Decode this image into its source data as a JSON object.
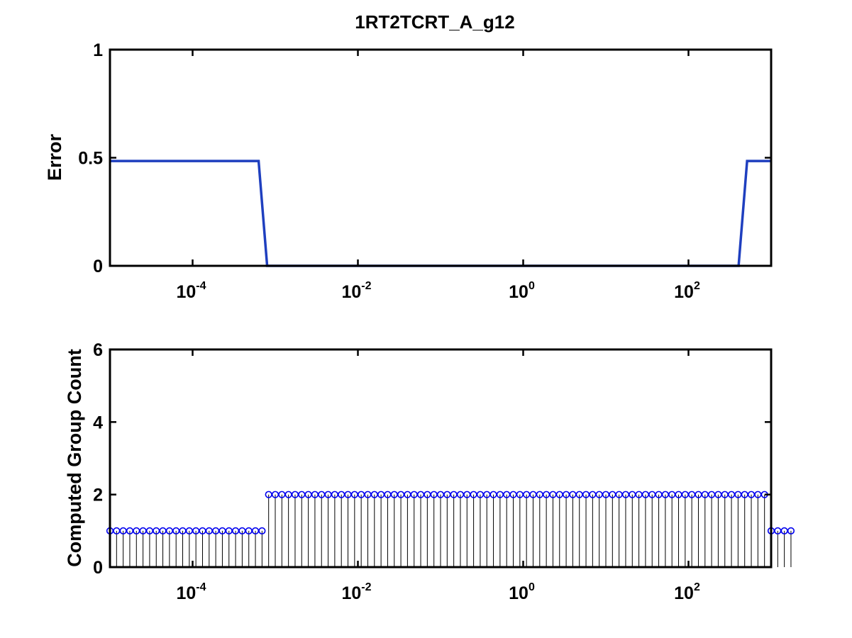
{
  "chart_data": [
    {
      "type": "line",
      "title": "1RT2TCRT_A_g12",
      "xlabel": "",
      "ylabel": "Error",
      "xscale": "log",
      "xlim": [
        1e-05,
        1000
      ],
      "ylim": [
        0,
        1
      ],
      "xticks": [
        {
          "base": "10",
          "exp": "-4",
          "value": 0.0001
        },
        {
          "base": "10",
          "exp": "-2",
          "value": 0.01
        },
        {
          "base": "10",
          "exp": "0",
          "value": 1
        },
        {
          "base": "10",
          "exp": "2",
          "value": 100
        }
      ],
      "yticks": [
        {
          "label": "0",
          "value": 0
        },
        {
          "label": "0.5",
          "value": 0.5
        },
        {
          "label": "1",
          "value": 1
        }
      ],
      "color": "#1f3fbf",
      "x": [
        1e-05,
        0.000629,
        0.000798,
        404,
        512,
        1000
      ],
      "y": [
        0.485,
        0.485,
        0,
        0,
        0.485,
        0.485
      ],
      "grid": false
    },
    {
      "type": "stem",
      "xlabel": "",
      "ylabel": "Computed Group Count",
      "xscale": "log",
      "xlim": [
        1e-05,
        1000
      ],
      "ylim": [
        0,
        6
      ],
      "xticks": [
        {
          "base": "10",
          "exp": "-4",
          "value": 0.0001
        },
        {
          "base": "10",
          "exp": "-2",
          "value": 0.01
        },
        {
          "base": "10",
          "exp": "0",
          "value": 1
        },
        {
          "base": "10",
          "exp": "2",
          "value": 100
        }
      ],
      "yticks": [
        {
          "label": "0",
          "value": 0
        },
        {
          "label": "2",
          "value": 2
        },
        {
          "label": "4",
          "value": 4
        },
        {
          "label": "6",
          "value": 6
        }
      ],
      "marker_color": "#0000ee",
      "stem_color": "#000000",
      "x_log10_start": -5,
      "x_log10_step": 0.08,
      "values": [
        1,
        1,
        1,
        1,
        1,
        1,
        1,
        1,
        1,
        1,
        1,
        1,
        1,
        1,
        1,
        1,
        1,
        1,
        1,
        1,
        1,
        1,
        1,
        1,
        2,
        2,
        2,
        2,
        2,
        2,
        2,
        2,
        2,
        2,
        2,
        2,
        2,
        2,
        2,
        2,
        2,
        2,
        2,
        2,
        2,
        2,
        2,
        2,
        2,
        2,
        2,
        2,
        2,
        2,
        2,
        2,
        2,
        2,
        2,
        2,
        2,
        2,
        2,
        2,
        2,
        2,
        2,
        2,
        2,
        2,
        2,
        2,
        2,
        2,
        2,
        2,
        2,
        2,
        2,
        2,
        2,
        2,
        2,
        2,
        2,
        2,
        2,
        2,
        2,
        2,
        2,
        2,
        2,
        2,
        2,
        2,
        2,
        2,
        2,
        2,
        1,
        1,
        1,
        1
      ],
      "grid": false
    }
  ]
}
